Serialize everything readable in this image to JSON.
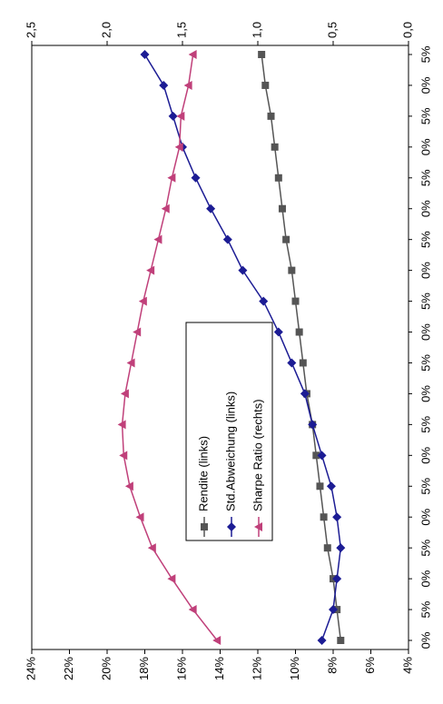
{
  "chart_data": {
    "type": "line",
    "categories": [
      "0%",
      "5%",
      "0%",
      "5%",
      "0%",
      "5%",
      "0%",
      "5%",
      "0%",
      "5%",
      "0%",
      "5%",
      "0%",
      "5%",
      "0%",
      "5%",
      "0%",
      "5%",
      "0%",
      "5%"
    ],
    "series": [
      {
        "name": "Rendite (links)",
        "color": "#555555",
        "marker": "square",
        "values": [
          7.6,
          7.8,
          8.0,
          8.3,
          8.5,
          8.7,
          8.9,
          9.1,
          9.4,
          9.6,
          9.8,
          10.0,
          10.2,
          10.5,
          10.7,
          10.9,
          11.1,
          11.3,
          11.6,
          11.8
        ]
      },
      {
        "name": "Std.Abweichung (links)",
        "color": "#1c1c94",
        "marker": "diamond",
        "values": [
          8.6,
          8.0,
          7.8,
          7.6,
          7.8,
          8.1,
          8.6,
          9.1,
          9.5,
          10.2,
          10.9,
          11.7,
          12.8,
          13.6,
          14.5,
          15.3,
          16.0,
          16.5,
          17.0,
          18.0
        ]
      },
      {
        "name": "Sharpe Ratio (rechts)",
        "color": "#c0407a",
        "marker": "triangle",
        "axis": "y2",
        "values": [
          1.27,
          1.43,
          1.57,
          1.7,
          1.78,
          1.85,
          1.89,
          1.9,
          1.88,
          1.84,
          1.8,
          1.76,
          1.71,
          1.66,
          1.61,
          1.57,
          1.52,
          1.51,
          1.46,
          1.43
        ]
      }
    ],
    "ylim": [
      4,
      24
    ],
    "yticks": [
      {
        "value": 4,
        "label": "4%"
      },
      {
        "value": 6,
        "label": "6%"
      },
      {
        "value": 8,
        "label": "8%"
      },
      {
        "value": 10,
        "label": "10%"
      },
      {
        "value": 12,
        "label": "12%"
      },
      {
        "value": 14,
        "label": "14%"
      },
      {
        "value": 16,
        "label": "16%"
      },
      {
        "value": 18,
        "label": "18%"
      },
      {
        "value": 20,
        "label": "20%"
      },
      {
        "value": 22,
        "label": "22%"
      },
      {
        "value": 24,
        "label": "24%"
      }
    ],
    "y2lim": [
      0,
      2.5
    ],
    "y2ticks": [
      {
        "value": 0,
        "label": "0,0"
      },
      {
        "value": 0.5,
        "label": "0,5"
      },
      {
        "value": 1,
        "label": "1,0"
      },
      {
        "value": 1.5,
        "label": "1,5"
      },
      {
        "value": 2,
        "label": "2,0"
      },
      {
        "value": 2.5,
        "label": "2,5"
      }
    ],
    "grid": false
  }
}
